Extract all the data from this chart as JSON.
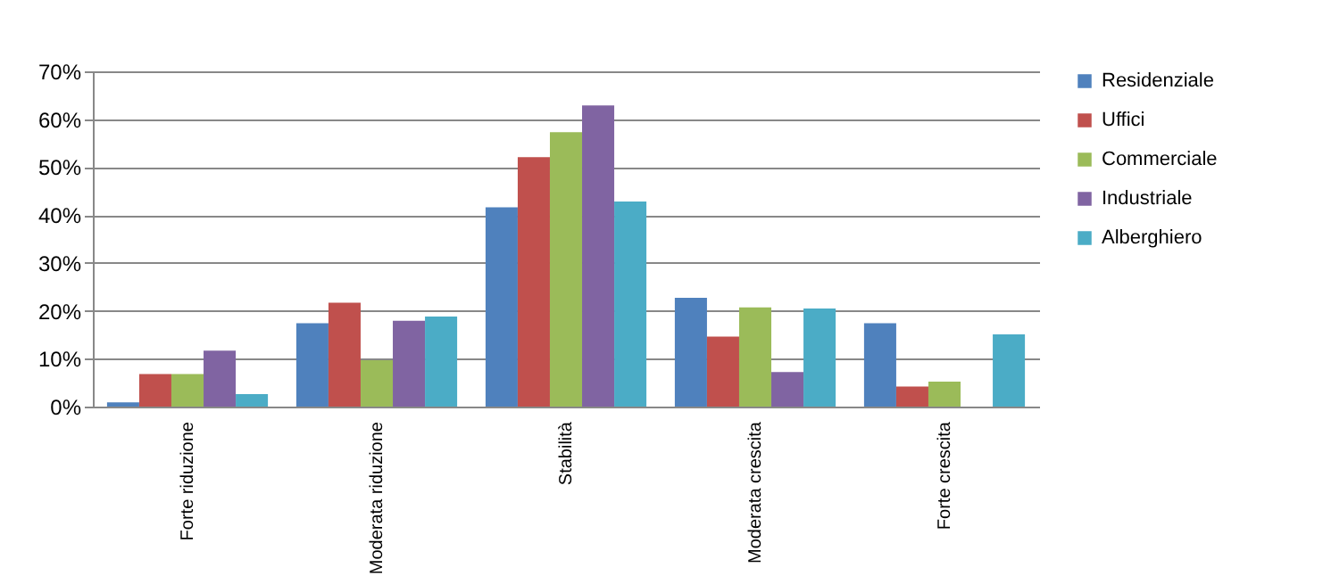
{
  "chart_data": {
    "type": "bar",
    "categories": [
      "Forte riduzione",
      "Moderata riduzione",
      "Stabilità",
      "Moderata crescita",
      "Forte crescita"
    ],
    "series": [
      {
        "name": "Residenziale",
        "color": "#4f81bd",
        "values": [
          0.9,
          17.4,
          41.6,
          22.7,
          17.4
        ]
      },
      {
        "name": "Uffici",
        "color": "#c0504d",
        "values": [
          6.8,
          21.7,
          52.1,
          14.6,
          4.2
        ]
      },
      {
        "name": "Commerciale",
        "color": "#9bbb59",
        "values": [
          6.8,
          9.7,
          57.3,
          20.7,
          5.2
        ]
      },
      {
        "name": "Industriale",
        "color": "#8064a2",
        "values": [
          11.7,
          17.9,
          62.9,
          7.2,
          null
        ]
      },
      {
        "name": "Alberghiero",
        "color": "#4bacc6",
        "values": [
          2.6,
          18.8,
          42.8,
          20.5,
          15.1
        ]
      }
    ],
    "ylim": [
      0,
      70
    ],
    "yticks": [
      {
        "value": 0,
        "label": "0%"
      },
      {
        "value": 10,
        "label": "10%"
      },
      {
        "value": 20,
        "label": "20%"
      },
      {
        "value": 30,
        "label": "30%"
      },
      {
        "value": 40,
        "label": "40%"
      },
      {
        "value": 50,
        "label": "50%"
      },
      {
        "value": 60,
        "label": "60%"
      },
      {
        "value": 70,
        "label": "70%"
      }
    ],
    "grid": "y",
    "legend": "right"
  }
}
